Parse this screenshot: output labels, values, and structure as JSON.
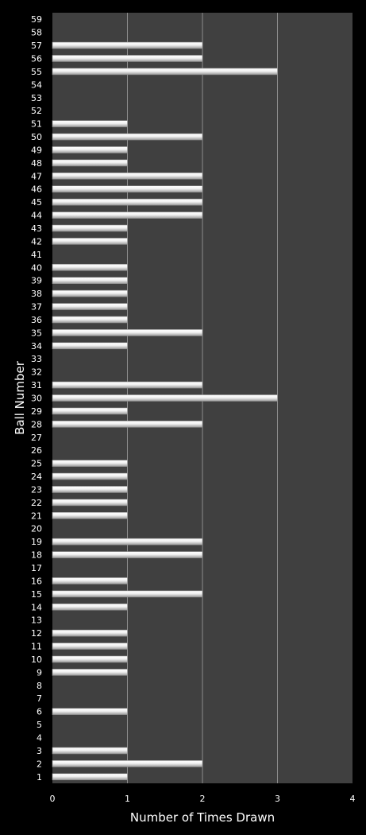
{
  "chart_data": {
    "type": "bar",
    "orientation": "horizontal",
    "title": "",
    "xlabel": "Number of Times Drawn",
    "ylabel": "Ball Number",
    "xlim": [
      0,
      4
    ],
    "x_ticks": [
      "0",
      "1",
      "2",
      "3",
      "4"
    ],
    "grid": "vertical gridlines",
    "legend": "none",
    "colors": {
      "background": "#000000",
      "plot_area": "#404040",
      "bar_fill": "#e6e6e6",
      "bar_edge": "#8c8c8c",
      "grid": "#a0a0a0",
      "text": "#ffffff"
    },
    "categories": [
      "1",
      "2",
      "3",
      "4",
      "5",
      "6",
      "7",
      "8",
      "9",
      "10",
      "11",
      "12",
      "13",
      "14",
      "15",
      "16",
      "17",
      "18",
      "19",
      "20",
      "21",
      "22",
      "23",
      "24",
      "25",
      "26",
      "27",
      "28",
      "29",
      "30",
      "31",
      "32",
      "33",
      "34",
      "35",
      "36",
      "37",
      "38",
      "39",
      "40",
      "41",
      "42",
      "43",
      "44",
      "45",
      "46",
      "47",
      "48",
      "49",
      "50",
      "51",
      "52",
      "53",
      "54",
      "55",
      "56",
      "57",
      "58",
      "59"
    ],
    "values": [
      1,
      2,
      1,
      0,
      0,
      1,
      0,
      0,
      1,
      1,
      1,
      1,
      0,
      1,
      2,
      1,
      0,
      2,
      2,
      0,
      1,
      1,
      1,
      1,
      1,
      0,
      0,
      2,
      1,
      3,
      2,
      0,
      0,
      1,
      2,
      1,
      1,
      1,
      1,
      1,
      0,
      1,
      1,
      2,
      2,
      2,
      2,
      1,
      1,
      2,
      1,
      0,
      0,
      0,
      3,
      2,
      2,
      0,
      0
    ]
  }
}
